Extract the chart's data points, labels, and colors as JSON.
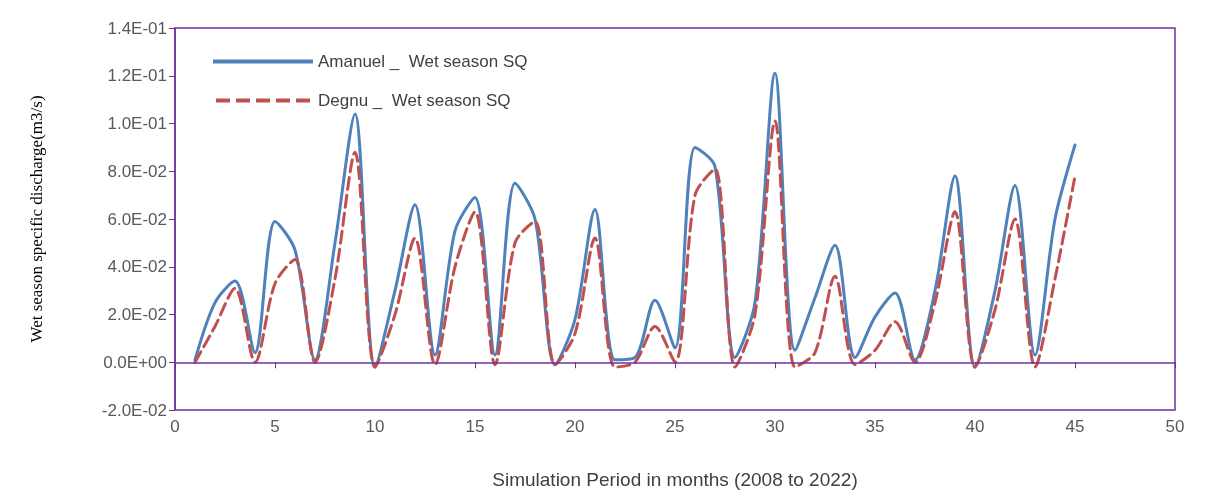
{
  "chart_data": {
    "type": "line",
    "xlabel": "Simulation Period in months (2008 to 2022)",
    "ylabel": "Wet season specific discharge(m3/s)",
    "x": [
      1,
      2,
      3,
      4,
      5,
      6,
      7,
      8,
      9,
      10,
      11,
      12,
      13,
      14,
      15,
      16,
      17,
      18,
      19,
      20,
      21,
      22,
      23,
      24,
      25,
      26,
      27,
      28,
      29,
      30,
      31,
      32,
      33,
      34,
      35,
      36,
      37,
      38,
      39,
      40,
      41,
      42,
      43,
      44,
      45
    ],
    "series": [
      {
        "name": "Amanuel _  Wet season SQ",
        "color": "#4f81bd",
        "line_style": "solid",
        "values": [
          0.001,
          0.025,
          0.034,
          0.004,
          0.059,
          0.047,
          0.001,
          0.05,
          0.104,
          -0.002,
          0.03,
          0.066,
          0.003,
          0.055,
          0.069,
          0.003,
          0.075,
          0.06,
          -0.001,
          0.018,
          0.064,
          0.001,
          0.002,
          0.026,
          0.006,
          0.09,
          0.082,
          0.002,
          0.025,
          0.121,
          0.005,
          0.027,
          0.049,
          0.002,
          0.019,
          0.029,
          0.001,
          0.03,
          0.078,
          -0.002,
          0.03,
          0.074,
          0.003,
          0.06,
          0.091
        ]
      },
      {
        "name": "Degnu _  Wet season SQ",
        "color": "#c0504d",
        "line_style": "dashed",
        "values": [
          0,
          0.015,
          0.031,
          0,
          0.033,
          0.043,
          0,
          0.035,
          0.088,
          -0.002,
          0.02,
          0.052,
          -0.001,
          0.04,
          0.063,
          -0.001,
          0.05,
          0.059,
          -0.001,
          0.012,
          0.052,
          -0.002,
          0,
          0.015,
          0,
          0.07,
          0.081,
          -0.002,
          0.02,
          0.101,
          -0.002,
          0.004,
          0.036,
          -0.001,
          0.005,
          0.017,
          0,
          0.025,
          0.063,
          -0.002,
          0.022,
          0.06,
          -0.002,
          0.035,
          0.078
        ]
      }
    ],
    "xlim": [
      0,
      50
    ],
    "xticks": [
      0,
      5,
      10,
      15,
      20,
      25,
      30,
      35,
      40,
      45,
      50
    ],
    "ylim": [
      -0.02,
      0.14
    ],
    "yticks": [
      {
        "value": -0.02,
        "label": "-2.0E-02"
      },
      {
        "value": 0,
        "label": "0.0E+00"
      },
      {
        "value": 0.02,
        "label": "2.0E-02"
      },
      {
        "value": 0.04,
        "label": "4.0E-02"
      },
      {
        "value": 0.06,
        "label": "6.0E-02"
      },
      {
        "value": 0.08,
        "label": "8.0E-02"
      },
      {
        "value": 0.1,
        "label": "1.0E-01"
      },
      {
        "value": 0.12,
        "label": "1.2E-01"
      },
      {
        "value": 0.14,
        "label": "1.4E-01"
      }
    ],
    "ref_lines": [
      {
        "axis": "y",
        "value": 0,
        "color": "#7030a0"
      }
    ],
    "grid": false,
    "legend": "top left",
    "marker": "none"
  }
}
